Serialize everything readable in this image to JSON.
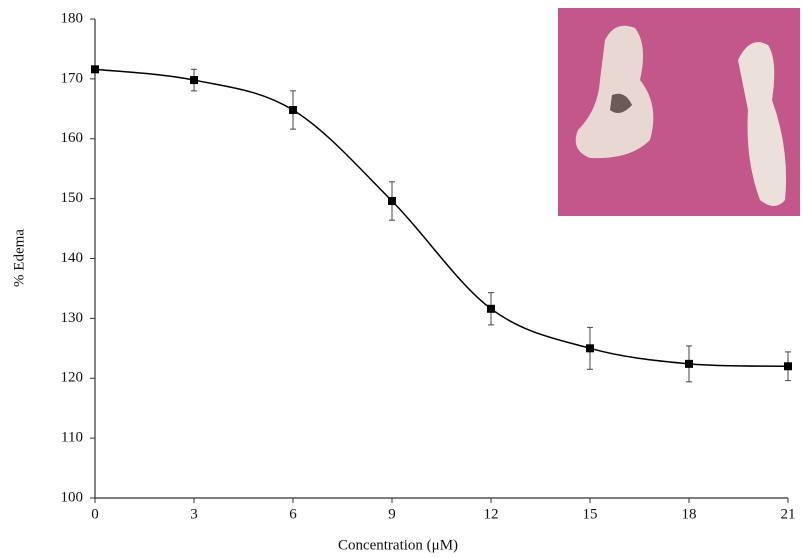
{
  "chart_data": {
    "type": "line",
    "x_label": "Concentration (μM)",
    "y_label": "% Edema",
    "x": [
      0,
      3,
      6,
      9,
      12,
      15,
      18,
      21
    ],
    "series": [
      {
        "color": "#000000",
        "values": [
          171.6,
          169.8,
          164.8,
          149.6,
          131.6,
          125.0,
          122.4,
          122.0
        ],
        "errors": [
          0.5,
          1.8,
          3.2,
          3.2,
          2.7,
          3.5,
          3.0,
          2.4
        ]
      }
    ],
    "xlim": [
      0,
      21
    ],
    "xticks": [
      0,
      3,
      6,
      9,
      12,
      15,
      18,
      21
    ],
    "ylim": [
      100,
      180
    ],
    "yticks": [
      100,
      110,
      120,
      130,
      140,
      150,
      160,
      170,
      180
    ],
    "grid": false
  }
}
